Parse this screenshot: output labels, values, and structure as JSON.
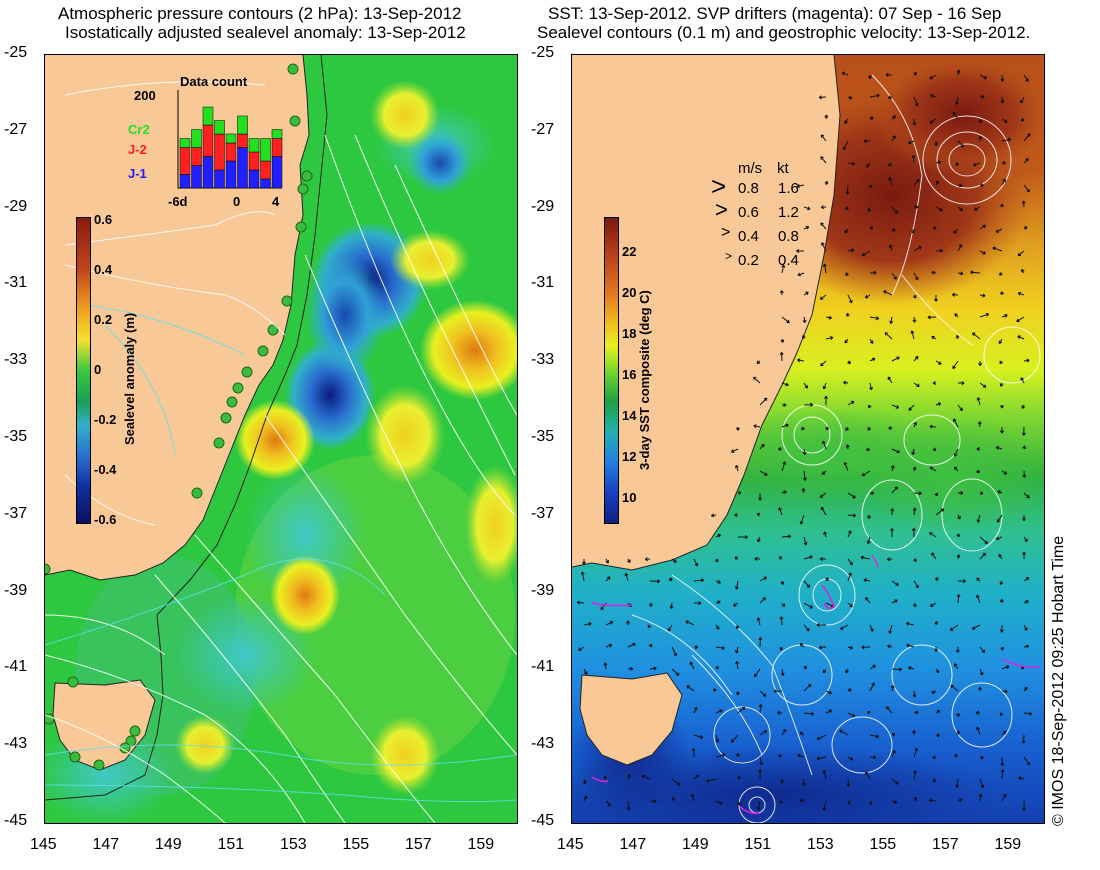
{
  "left_panel": {
    "title_line1": "Atmospheric pressure contours (2 hPa): 13-Sep-2012",
    "title_line2": "Isostatically adjusted sealevel anomaly: 13-Sep-2012",
    "lat_ticks": [
      "-25",
      "-27",
      "-29",
      "-31",
      "-33",
      "-35",
      "-37",
      "-39",
      "-41",
      "-43",
      "-45"
    ],
    "lon_ticks": [
      "145",
      "147",
      "149",
      "151",
      "153",
      "155",
      "157",
      "159"
    ],
    "colorbar": {
      "label": "Sealevel anomaly (m)",
      "ticks": [
        "0.6",
        "0.4",
        "0.2",
        "0",
        "-0.2",
        "-0.4",
        "-0.6"
      ],
      "colors": [
        "#8b1a10",
        "#c0461a",
        "#f0a020",
        "#f5e030",
        "#3cc83c",
        "#1aa050",
        "#30b0c8",
        "#2a70d0",
        "#1030a0",
        "#0a1060"
      ]
    },
    "data_count": {
      "title": "Data count",
      "y_top": "200",
      "x_ticks": [
        "-6d",
        "0",
        "4"
      ],
      "legend": [
        {
          "label": "Cr2",
          "color": "#20e020"
        },
        {
          "label": "J-2",
          "color": "#ff2020"
        },
        {
          "label": "J-1",
          "color": "#2020ff"
        }
      ],
      "bars": [
        {
          "j1": 0.15,
          "j2": 0.3,
          "cr2": 0.1
        },
        {
          "j1": 0.25,
          "j2": 0.2,
          "cr2": 0.2
        },
        {
          "j1": 0.35,
          "j2": 0.35,
          "cr2": 0.2
        },
        {
          "j1": 0.2,
          "j2": 0.4,
          "cr2": 0.15
        },
        {
          "j1": 0.3,
          "j2": 0.2,
          "cr2": 0.1
        },
        {
          "j1": 0.45,
          "j2": 0.15,
          "cr2": 0.2
        },
        {
          "j1": 0.2,
          "j2": 0.2,
          "cr2": 0.15
        },
        {
          "j1": 0.1,
          "j2": 0.2,
          "cr2": 0.25
        },
        {
          "j1": 0.35,
          "j2": 0.2,
          "cr2": 0.1
        }
      ]
    }
  },
  "right_panel": {
    "title_line1": "SST: 13-Sep-2012. SVP drifters (magenta): 07 Sep - 16 Sep",
    "title_line2": "Sealevel contours (0.1 m) and geostrophic velocity: 13-Sep-2012.",
    "lat_ticks": [
      "-25",
      "-27",
      "-29",
      "-31",
      "-33",
      "-35",
      "-37",
      "-39",
      "-41",
      "-43",
      "-45"
    ],
    "lon_ticks": [
      "145",
      "147",
      "149",
      "151",
      "153",
      "155",
      "157",
      "159"
    ],
    "colorbar": {
      "label": "3-day SST composite (deg C)",
      "ticks": [
        "22",
        "20",
        "18",
        "16",
        "14",
        "12",
        "10"
      ],
      "colors": [
        "#7a1a10",
        "#b8401a",
        "#e07a20",
        "#f0c020",
        "#e8f020",
        "#60d030",
        "#20a040",
        "#20b0b0",
        "#2080e0",
        "#1840c0",
        "#102080"
      ]
    },
    "velocity_legend": {
      "header_ms": "m/s",
      "header_kt": "kt",
      "rows": [
        {
          "ms": "0.8",
          "kt": "1.6"
        },
        {
          "ms": "0.6",
          "kt": "1.2"
        },
        {
          "ms": "0.4",
          "kt": "0.8"
        },
        {
          "ms": "0.2",
          "kt": "0.4"
        }
      ]
    }
  },
  "credit": "© IMOS 18-Sep-2012 09:25 Hobart Time",
  "colors": {
    "land": "#f8c896",
    "ocean_green": "#2ec840",
    "contour": "#ffffff",
    "coast_fill": "#3cbc3c"
  }
}
